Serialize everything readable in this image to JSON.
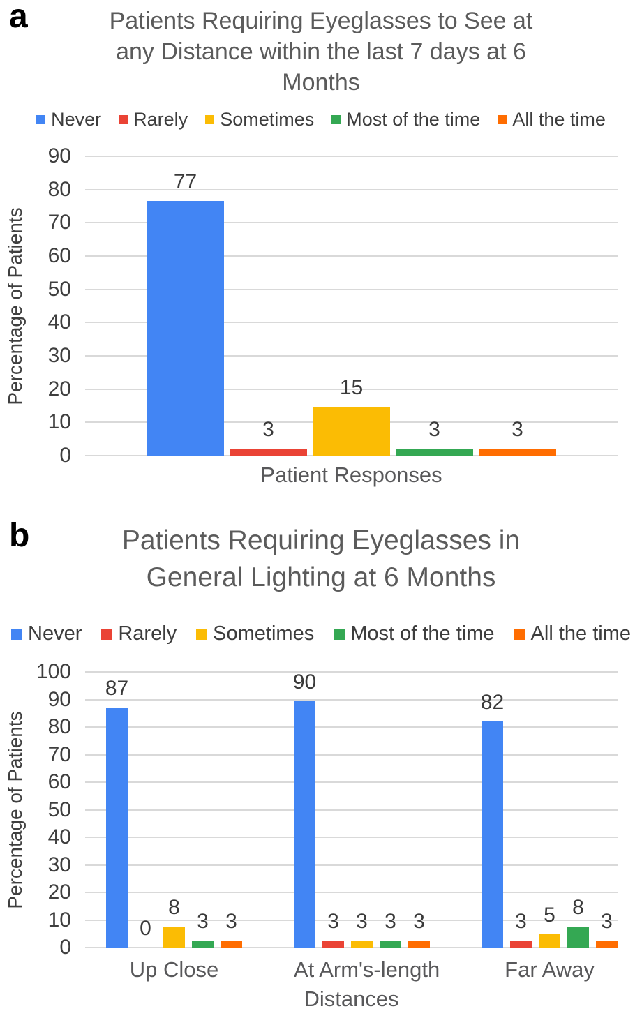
{
  "colors": {
    "grid": "#d9d9d9",
    "title_text": "#5b5b5b",
    "axis_text": "#3f3f3f",
    "data_label_text": "#3a3a3a",
    "series_blue": "#4285F4",
    "series_red": "#EA4335",
    "series_yellow": "#FBBC04",
    "series_green": "#34A853",
    "series_orange": "#FF6D01"
  },
  "chart_data": [
    {
      "type": "bar",
      "panel_letter": "a",
      "title": "Patients Requiring Eyeglasses to See at any Distance within the last 7 days at 6 Months",
      "title_lines": [
        "Patients Requiring Eyeglasses to See at",
        "any Distance within the last 7 days at 6",
        "Months"
      ],
      "legend_position": "top",
      "grid": true,
      "xlabel": "Patient Responses",
      "ylabel": "Percentage of Patients",
      "ylim": [
        0,
        90
      ],
      "ytick_step": 10,
      "categories": [
        ""
      ],
      "category_labels_visible": false,
      "series": [
        {
          "name": "Never",
          "color": "#4285F4",
          "values": [
            77
          ],
          "data_labels": [
            "77"
          ],
          "drawn_heights": [
            76.5
          ]
        },
        {
          "name": "Rarely",
          "color": "#EA4335",
          "values": [
            3
          ],
          "data_labels": [
            "3"
          ],
          "drawn_heights": [
            2
          ]
        },
        {
          "name": "Sometimes",
          "color": "#FBBC04",
          "values": [
            15
          ],
          "data_labels": [
            "15"
          ],
          "drawn_heights": [
            14.7
          ]
        },
        {
          "name": "Most of the time",
          "color": "#34A853",
          "values": [
            3
          ],
          "data_labels": [
            "3"
          ],
          "drawn_heights": [
            2
          ]
        },
        {
          "name": "All the time",
          "color": "#FF6D01",
          "values": [
            3
          ],
          "data_labels": [
            "3"
          ],
          "drawn_heights": [
            2
          ]
        }
      ]
    },
    {
      "type": "bar",
      "panel_letter": "b",
      "title": "Patients Requiring Eyeglasses in General Lighting at 6 Months",
      "title_lines": [
        "Patients Requiring Eyeglasses in",
        "General Lighting at 6 Months"
      ],
      "legend_position": "top",
      "grid": true,
      "xlabel": "Distances",
      "ylabel": "Percentage of Patients",
      "ylim": [
        0,
        100
      ],
      "ytick_step": 10,
      "categories": [
        "Up Close",
        "At Arm's-length",
        "Far Away"
      ],
      "category_labels_visible": true,
      "series": [
        {
          "name": "Never",
          "color": "#4285F4",
          "values": [
            87,
            90,
            82
          ],
          "data_labels": [
            "87",
            "90",
            "82"
          ],
          "drawn_heights": [
            87,
            89.5,
            82
          ]
        },
        {
          "name": "Rarely",
          "color": "#EA4335",
          "values": [
            0,
            3,
            3
          ],
          "data_labels": [
            "0",
            "3",
            "3"
          ],
          "drawn_heights": [
            0,
            2.5,
            2.5
          ]
        },
        {
          "name": "Sometimes",
          "color": "#FBBC04",
          "values": [
            8,
            3,
            5
          ],
          "data_labels": [
            "8",
            "3",
            "5"
          ],
          "drawn_heights": [
            7.7,
            2.5,
            4.8
          ]
        },
        {
          "name": "Most of the time",
          "color": "#34A853",
          "values": [
            3,
            3,
            8
          ],
          "data_labels": [
            "3",
            "3",
            "8"
          ],
          "drawn_heights": [
            2.5,
            2.5,
            7.7
          ]
        },
        {
          "name": "All the time",
          "color": "#FF6D01",
          "values": [
            3,
            3,
            3
          ],
          "data_labels": [
            "3",
            "3",
            "3"
          ],
          "drawn_heights": [
            2.5,
            2.5,
            2.5
          ]
        }
      ]
    }
  ]
}
